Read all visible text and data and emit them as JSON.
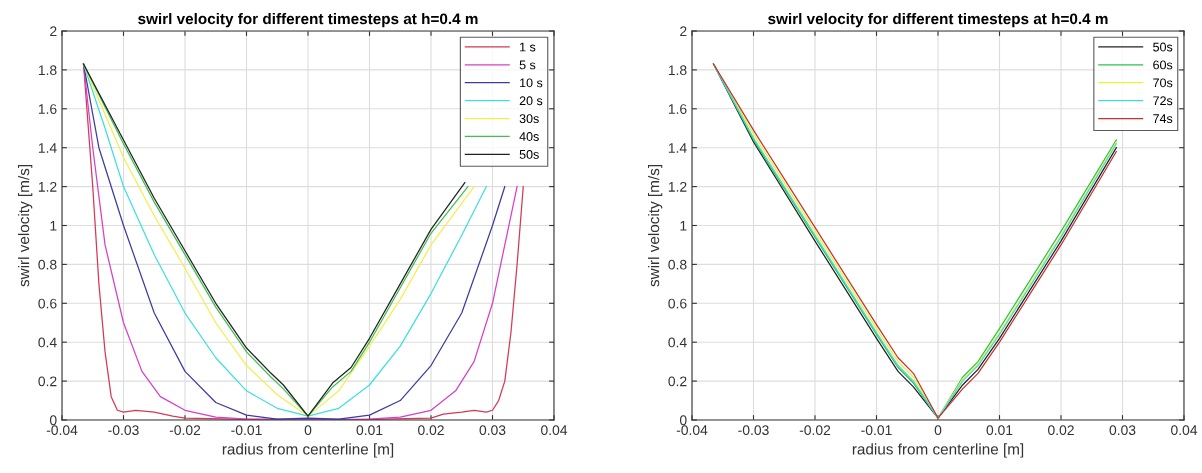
{
  "chart_data": [
    {
      "type": "line",
      "title": "swirl velocity for different timesteps at h=0.4 m",
      "xlabel": "radius from centerline [m]",
      "ylabel": "swirl velocity [m/s]",
      "xlim": [
        -0.04,
        0.04
      ],
      "ylim": [
        0,
        2
      ],
      "xticks": [
        -0.04,
        -0.03,
        -0.02,
        -0.01,
        0,
        0.01,
        0.02,
        0.03,
        0.04
      ],
      "yticks": [
        0,
        0.2,
        0.4,
        0.6,
        0.8,
        1,
        1.2,
        1.4,
        1.6,
        1.8,
        2
      ],
      "grid": true,
      "legend": "top right",
      "marker": "none",
      "line_style": "solid",
      "series": [
        {
          "name": "1 s",
          "color": "#d23a55",
          "x": [
            -0.0365,
            -0.035,
            -0.034,
            -0.033,
            -0.032,
            -0.031,
            -0.03,
            -0.028,
            -0.025,
            -0.022,
            -0.02,
            -0.01,
            0,
            0.01,
            0.02,
            0.022,
            0.025,
            0.027,
            0.029,
            0.03,
            0.031,
            0.032,
            0.033,
            0.034,
            0.035
          ],
          "values": [
            1.83,
            1.2,
            0.7,
            0.35,
            0.12,
            0.05,
            0.04,
            0.05,
            0.04,
            0.02,
            0.01,
            0.003,
            0.0,
            0.003,
            0.01,
            0.03,
            0.04,
            0.05,
            0.04,
            0.05,
            0.1,
            0.2,
            0.45,
            0.8,
            1.2
          ]
        },
        {
          "name": "5 s",
          "color": "#d63fc8",
          "x": [
            -0.0365,
            -0.035,
            -0.033,
            -0.03,
            -0.027,
            -0.024,
            -0.02,
            -0.015,
            -0.01,
            0,
            0.01,
            0.015,
            0.02,
            0.024,
            0.027,
            0.03,
            0.032,
            0.034
          ],
          "values": [
            1.83,
            1.4,
            0.9,
            0.5,
            0.25,
            0.12,
            0.05,
            0.015,
            0.005,
            0.003,
            0.005,
            0.015,
            0.05,
            0.15,
            0.3,
            0.6,
            0.9,
            1.2
          ]
        },
        {
          "name": "10 s",
          "color": "#3c3ca0",
          "x": [
            -0.0365,
            -0.034,
            -0.03,
            -0.025,
            -0.02,
            -0.015,
            -0.01,
            -0.005,
            0,
            0.005,
            0.01,
            0.015,
            0.02,
            0.025,
            0.03,
            0.032
          ],
          "values": [
            1.83,
            1.4,
            1.0,
            0.55,
            0.25,
            0.09,
            0.025,
            0.005,
            0.01,
            0.005,
            0.025,
            0.1,
            0.28,
            0.55,
            1.0,
            1.2
          ]
        },
        {
          "name": "20 s",
          "color": "#40dede",
          "x": [
            -0.0365,
            -0.033,
            -0.03,
            -0.025,
            -0.02,
            -0.015,
            -0.01,
            -0.005,
            0,
            0.005,
            0.01,
            0.015,
            0.02,
            0.025,
            0.029
          ],
          "values": [
            1.83,
            1.5,
            1.2,
            0.85,
            0.55,
            0.32,
            0.15,
            0.06,
            0.02,
            0.06,
            0.18,
            0.38,
            0.65,
            0.95,
            1.2
          ]
        },
        {
          "name": "30s",
          "color": "#f0f050",
          "x": [
            -0.0365,
            -0.03,
            -0.025,
            -0.02,
            -0.015,
            -0.01,
            -0.005,
            0,
            0.005,
            0.01,
            0.015,
            0.02,
            0.027
          ],
          "values": [
            1.83,
            1.35,
            1.05,
            0.78,
            0.5,
            0.28,
            0.13,
            0.02,
            0.15,
            0.38,
            0.62,
            0.9,
            1.2
          ]
        },
        {
          "name": "40s",
          "color": "#40c050",
          "x": [
            -0.0365,
            -0.03,
            -0.025,
            -0.02,
            -0.015,
            -0.01,
            -0.006,
            -0.004,
            0,
            0.004,
            0.007,
            0.01,
            0.015,
            0.02,
            0.026
          ],
          "values": [
            1.83,
            1.42,
            1.12,
            0.85,
            0.58,
            0.35,
            0.22,
            0.16,
            0.02,
            0.17,
            0.25,
            0.4,
            0.68,
            0.96,
            1.2
          ]
        },
        {
          "name": "50s",
          "color": "#222222",
          "x": [
            -0.0365,
            -0.03,
            -0.025,
            -0.02,
            -0.015,
            -0.01,
            -0.006,
            -0.004,
            0,
            0.004,
            0.007,
            0.01,
            0.015,
            0.02,
            0.0255
          ],
          "values": [
            1.83,
            1.44,
            1.14,
            0.87,
            0.6,
            0.37,
            0.24,
            0.18,
            0.02,
            0.19,
            0.27,
            0.42,
            0.7,
            0.98,
            1.22
          ]
        }
      ]
    },
    {
      "type": "line",
      "title": "swirl velocity for different timesteps at h=0.4 m",
      "xlabel": "radius from centerline [m]",
      "ylabel": "swirl velocity [m/s]",
      "xlim": [
        -0.04,
        0.04
      ],
      "ylim": [
        0,
        2
      ],
      "xticks": [
        -0.04,
        -0.03,
        -0.02,
        -0.01,
        0,
        0.01,
        0.02,
        0.03,
        0.04
      ],
      "yticks": [
        0,
        0.2,
        0.4,
        0.6,
        0.8,
        1,
        1.2,
        1.4,
        1.6,
        1.8,
        2
      ],
      "grid": true,
      "legend": "top right",
      "marker": "none",
      "line_style": "solid",
      "series": [
        {
          "name": "50s",
          "color": "#222222",
          "x": [
            -0.0365,
            -0.03,
            -0.02,
            -0.01,
            -0.0065,
            -0.004,
            0,
            0.004,
            0.0065,
            0.01,
            0.02,
            0.029
          ],
          "values": [
            1.83,
            1.43,
            0.92,
            0.42,
            0.25,
            0.17,
            0.01,
            0.18,
            0.26,
            0.42,
            0.92,
            1.4
          ]
        },
        {
          "name": "60s",
          "color": "#30c050",
          "x": [
            -0.0365,
            -0.03,
            -0.02,
            -0.01,
            -0.0065,
            -0.004,
            0,
            0.004,
            0.0065,
            0.01,
            0.02,
            0.029
          ],
          "values": [
            1.83,
            1.44,
            0.94,
            0.44,
            0.27,
            0.19,
            0.01,
            0.22,
            0.3,
            0.47,
            0.97,
            1.44
          ]
        },
        {
          "name": "70s",
          "color": "#f0f030",
          "x": [
            -0.0365,
            -0.03,
            -0.02,
            -0.01,
            -0.0065,
            -0.004,
            0,
            0.004,
            0.0065,
            0.01,
            0.02,
            0.029
          ],
          "values": [
            1.83,
            1.47,
            0.97,
            0.47,
            0.3,
            0.22,
            0.01,
            0.21,
            0.29,
            0.45,
            0.95,
            1.43
          ]
        },
        {
          "name": "72s",
          "color": "#40d8e0",
          "x": [
            -0.0365,
            -0.03,
            -0.02,
            -0.01,
            -0.0065,
            -0.004,
            0,
            0.004,
            0.0065,
            0.01,
            0.02,
            0.029
          ],
          "values": [
            1.83,
            1.45,
            0.95,
            0.45,
            0.28,
            0.2,
            0.01,
            0.2,
            0.28,
            0.44,
            0.94,
            1.42
          ]
        },
        {
          "name": "74s",
          "color": "#c83030",
          "x": [
            -0.0365,
            -0.03,
            -0.02,
            -0.01,
            -0.0065,
            -0.004,
            0,
            0.004,
            0.0065,
            0.01,
            0.02,
            0.029
          ],
          "values": [
            1.83,
            1.49,
            0.99,
            0.49,
            0.32,
            0.24,
            0.01,
            0.16,
            0.24,
            0.4,
            0.9,
            1.38
          ]
        }
      ]
    }
  ]
}
